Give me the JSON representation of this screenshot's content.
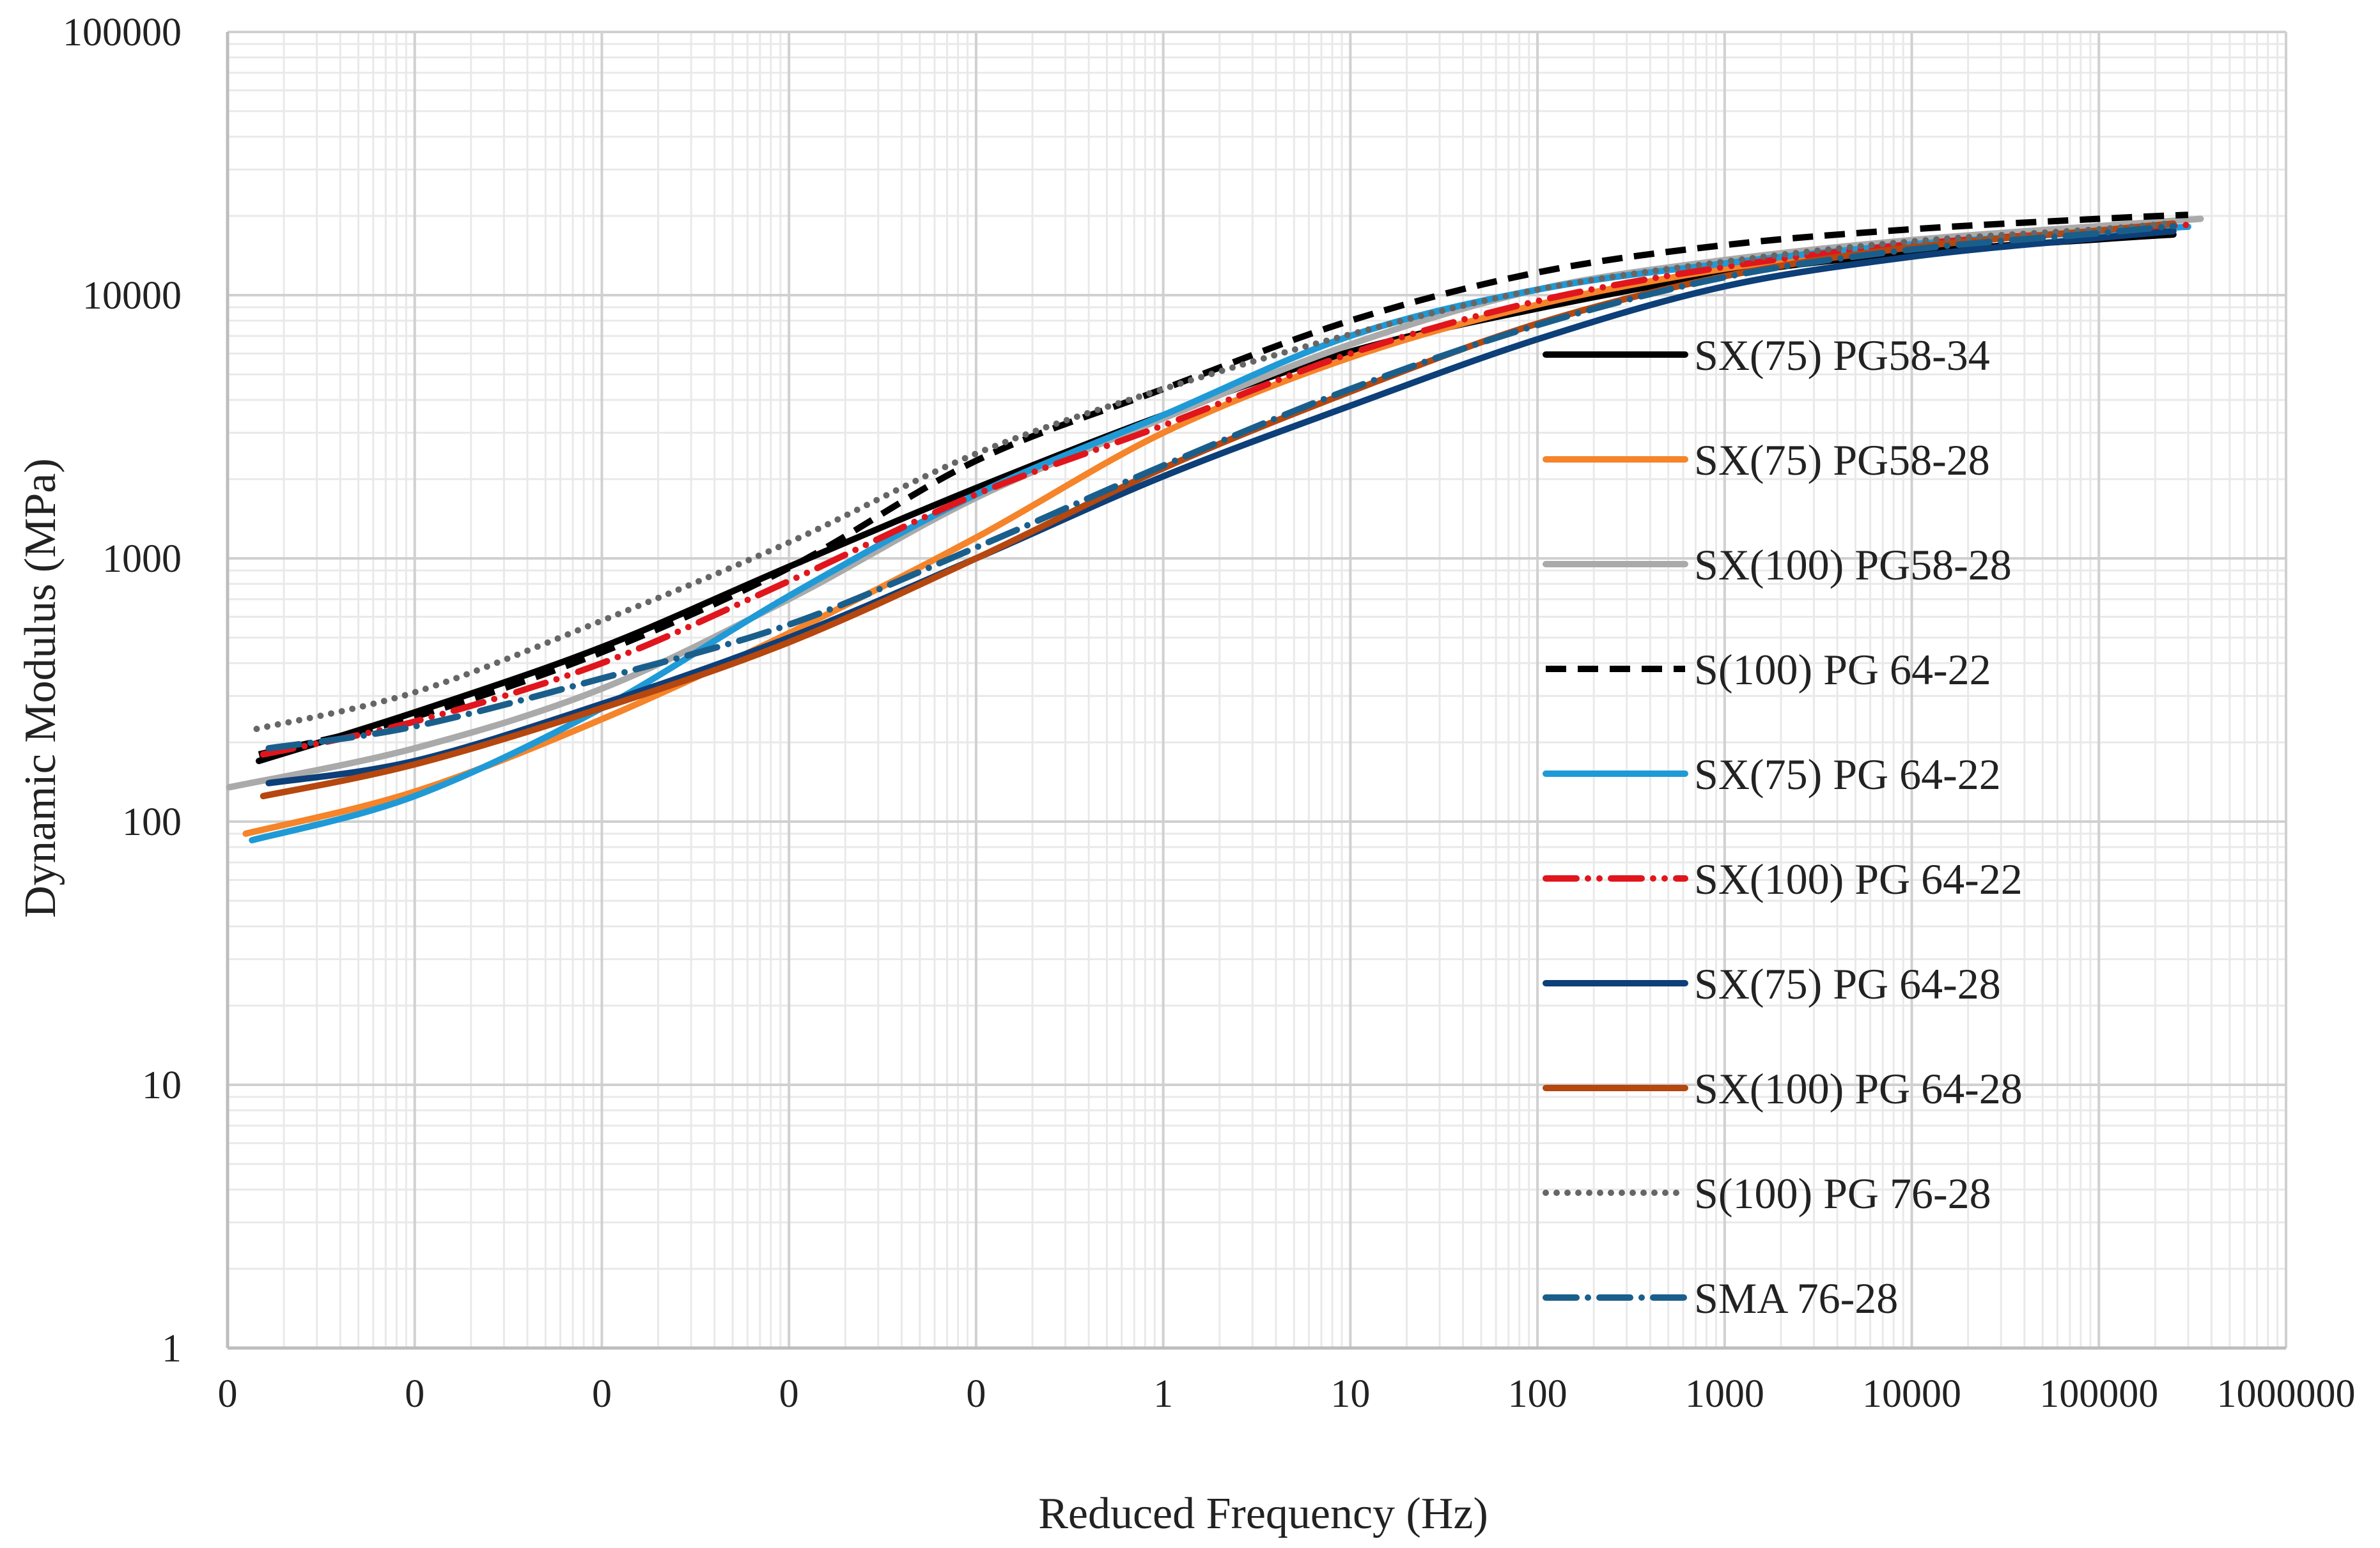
{
  "chart_data": {
    "type": "line",
    "title": "",
    "xlabel": "Reduced Frequency (Hz)",
    "ylabel": "Dynamic Modulus (MPa)",
    "x_scale": "log",
    "y_scale": "log",
    "xlim": [
      1e-05,
      1000000
    ],
    "ylim": [
      1,
      100000
    ],
    "grid": true,
    "legend_position": "right",
    "x_tick_labels": [
      "0",
      "0",
      "0",
      "0",
      "0",
      "1",
      "10",
      "100",
      "1000",
      "10000",
      "100000",
      "1000000"
    ],
    "y_tick_labels": [
      "1",
      "10",
      "100",
      "1000",
      "10000",
      "100000"
    ],
    "series": [
      {
        "name": "SX(75) PG58-34",
        "color": "#000000",
        "style": "solid",
        "x": [
          1.47e-05,
          0.0001,
          0.001,
          0.01,
          0.1,
          1,
          10,
          100,
          1000,
          10000,
          100000,
          250000
        ],
        "y": [
          170,
          260,
          460,
          930,
          1850,
          3500,
          6100,
          8900,
          12000,
          14500,
          16300,
          17000
        ]
      },
      {
        "name": "SX(75) PG58-28",
        "color": "#f5842a",
        "style": "solid",
        "x": [
          1.25e-05,
          0.0001,
          0.001,
          0.01,
          0.1,
          1,
          10,
          100,
          1000,
          10000,
          100000,
          250000
        ],
        "y": [
          90,
          130,
          245,
          520,
          1200,
          3000,
          5800,
          9200,
          12600,
          15500,
          17600,
          18400
        ]
      },
      {
        "name": "SX(100) PG58-28",
        "color": "#aaaaaa",
        "style": "solid",
        "x": [
          1.02e-05,
          0.0001,
          0.001,
          0.01,
          0.1,
          1,
          10,
          100,
          1000,
          10000,
          100000,
          350000
        ],
        "y": [
          135,
          190,
          320,
          700,
          1700,
          3400,
          6500,
          10500,
          13600,
          16200,
          18300,
          19500
        ]
      },
      {
        "name": "S(100) PG 64-22",
        "color": "#000000",
        "style": "dashed",
        "x": [
          1.47e-05,
          0.0001,
          0.001,
          0.01,
          0.1,
          1,
          10,
          100,
          1000,
          10000,
          100000,
          300000
        ],
        "y": [
          180,
          250,
          440,
          920,
          2350,
          4400,
          8000,
          12200,
          15500,
          17800,
          19500,
          20200
        ]
      },
      {
        "name": "SX(75) PG 64-22",
        "color": "#1f9ad6",
        "style": "solid",
        "x": [
          1.35e-05,
          0.0001,
          0.001,
          0.01,
          0.1,
          1,
          10,
          100,
          1000,
          10000,
          100000,
          300000
        ],
        "y": [
          85,
          125,
          270,
          720,
          1750,
          3500,
          7000,
          10500,
          13200,
          15600,
          17400,
          18200
        ]
      },
      {
        "name": "SX(100) PG 64-22",
        "color": "#e0161c",
        "style": "dashdotdot",
        "x": [
          1.55e-05,
          0.0001,
          0.001,
          0.01,
          0.1,
          1,
          10,
          100,
          1000,
          10000,
          100000,
          300000
        ],
        "y": [
          180,
          240,
          400,
          820,
          1750,
          3200,
          6000,
          9500,
          12800,
          15600,
          17500,
          18500
        ]
      },
      {
        "name": "SX(75) PG 64-28",
        "color": "#0d3f78",
        "style": "solid",
        "x": [
          1.66e-05,
          0.0001,
          0.001,
          0.01,
          0.1,
          1,
          10,
          100,
          1000,
          10000,
          100000,
          250000
        ],
        "y": [
          140,
          170,
          280,
          500,
          1000,
          2050,
          3800,
          6800,
          10800,
          14000,
          16500,
          17500
        ]
      },
      {
        "name": "SX(100) PG 64-28",
        "color": "#b5470f",
        "style": "solid",
        "x": [
          1.55e-05,
          0.0001,
          0.001,
          0.01,
          0.1,
          1,
          10,
          100,
          1000,
          10000,
          100000,
          250000
        ],
        "y": [
          125,
          165,
          270,
          480,
          1000,
          2200,
          4300,
          7800,
          11800,
          15200,
          17600,
          18700
        ]
      },
      {
        "name": "S(100) PG 76-28",
        "color": "#666666",
        "style": "dotted",
        "x": [
          1.43e-05,
          0.0001,
          0.001,
          0.01,
          0.1,
          1,
          10,
          100,
          1000,
          10000,
          100000,
          250000
        ],
        "y": [
          225,
          310,
          580,
          1150,
          2500,
          4400,
          7100,
          10500,
          13400,
          16000,
          17800,
          18800
        ]
      },
      {
        "name": "SMA  76-28",
        "color": "#1a5f8c",
        "style": "dashdot",
        "x": [
          1.66e-05,
          0.0001,
          0.001,
          0.01,
          0.1,
          1,
          10,
          100,
          1000,
          10000,
          100000,
          250000
        ],
        "y": [
          190,
          230,
          350,
          560,
          1100,
          2250,
          4400,
          7700,
          11700,
          14900,
          17200,
          18300
        ]
      }
    ]
  }
}
